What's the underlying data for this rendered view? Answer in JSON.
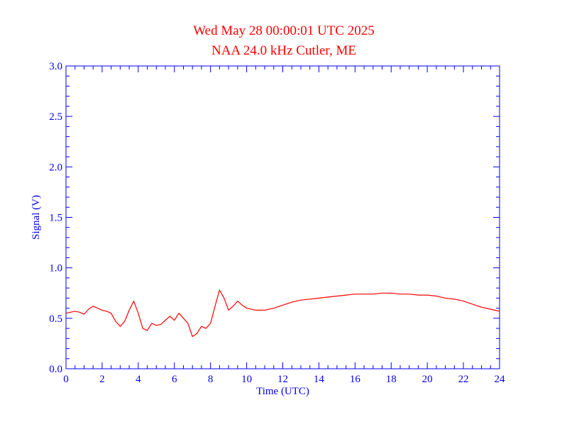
{
  "chart_data": {
    "type": "line",
    "title": "Wed May 28 00:00:01 UTC 2025",
    "subtitle": "NAA 24.0 kHz Cutler, ME",
    "xlabel": "Time (UTC)",
    "ylabel": "Signal (V)",
    "xlim": [
      0,
      24
    ],
    "ylim": [
      0,
      3.0
    ],
    "x_ticks": [
      "0",
      "2",
      "4",
      "6",
      "8",
      "10",
      "12",
      "14",
      "16",
      "18",
      "20",
      "22",
      "24"
    ],
    "y_ticks": [
      "0.0",
      "0.5",
      "1.0",
      "1.5",
      "2.0",
      "2.5",
      "3.0"
    ],
    "grid": false,
    "colors": {
      "axis": "#0000ff",
      "line": "#ff0000",
      "title": "#ff0000"
    },
    "series": [
      {
        "x": [
          0,
          0.25,
          0.5,
          0.75,
          1.0,
          1.25,
          1.5,
          1.75,
          2.0,
          2.25,
          2.5,
          2.75,
          3.0,
          3.25,
          3.5,
          3.75,
          4.0,
          4.25,
          4.5,
          4.75,
          5.0,
          5.25,
          5.5,
          5.75,
          6.0,
          6.25,
          6.5,
          6.75,
          7.0,
          7.25,
          7.5,
          7.75,
          8.0,
          8.25,
          8.5,
          8.75,
          9.0,
          9.25,
          9.5,
          9.75,
          10.0,
          10.5,
          11.0,
          11.5,
          12.0,
          12.5,
          13.0,
          13.5,
          14.0,
          14.5,
          15.0,
          15.5,
          16.0,
          16.5,
          17.0,
          17.5,
          18.0,
          18.5,
          19.0,
          19.5,
          20.0,
          20.5,
          21.0,
          21.5,
          22.0,
          22.5,
          23.0,
          23.5,
          24.0
        ],
        "values": [
          0.55,
          0.56,
          0.57,
          0.56,
          0.54,
          0.59,
          0.62,
          0.6,
          0.58,
          0.57,
          0.55,
          0.47,
          0.42,
          0.47,
          0.58,
          0.67,
          0.55,
          0.4,
          0.38,
          0.45,
          0.43,
          0.44,
          0.48,
          0.52,
          0.48,
          0.55,
          0.5,
          0.45,
          0.32,
          0.35,
          0.42,
          0.4,
          0.45,
          0.62,
          0.78,
          0.7,
          0.58,
          0.62,
          0.67,
          0.63,
          0.6,
          0.58,
          0.58,
          0.6,
          0.63,
          0.66,
          0.68,
          0.69,
          0.7,
          0.71,
          0.72,
          0.73,
          0.74,
          0.74,
          0.74,
          0.75,
          0.75,
          0.74,
          0.74,
          0.73,
          0.73,
          0.72,
          0.7,
          0.69,
          0.67,
          0.64,
          0.61,
          0.59,
          0.57
        ]
      }
    ]
  }
}
